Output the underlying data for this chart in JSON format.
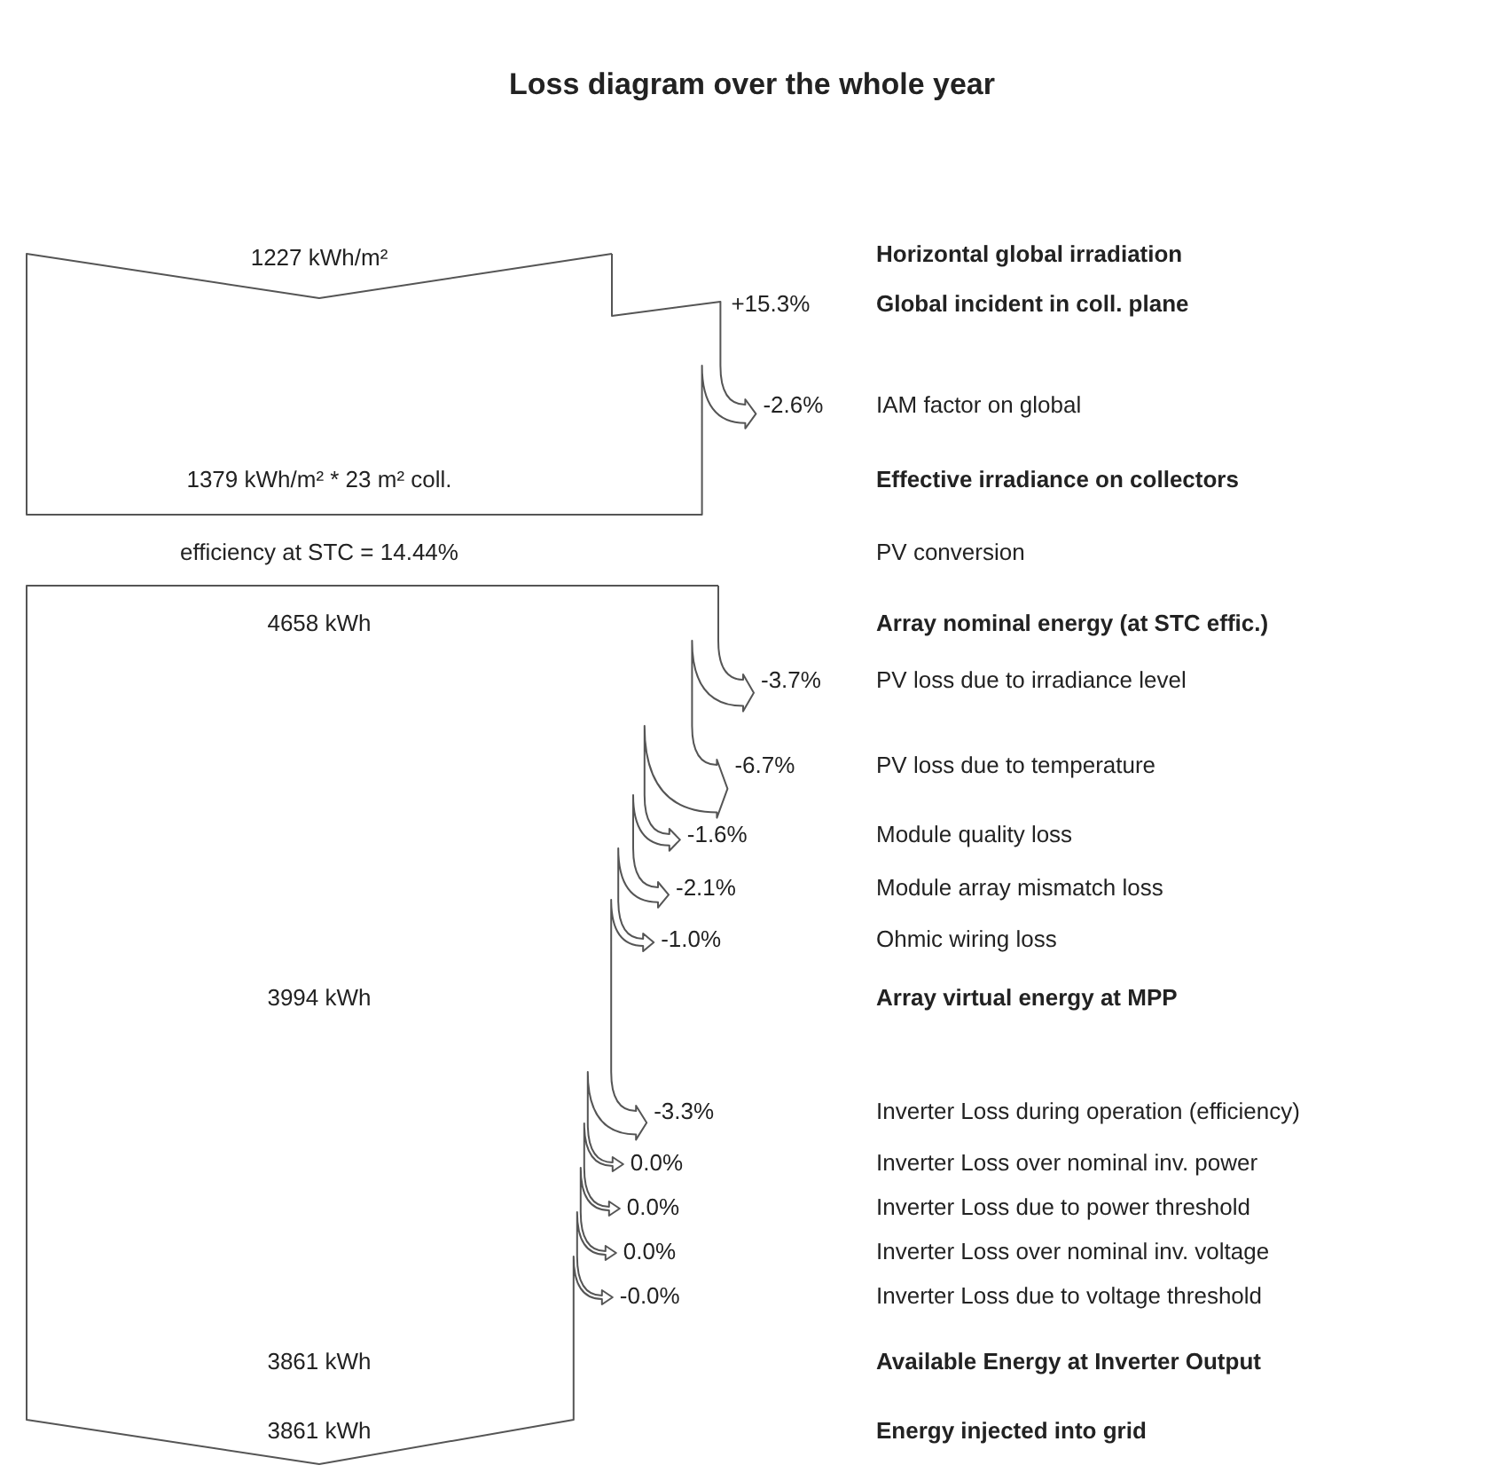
{
  "chart_data": {
    "type": "other",
    "title": "Loss diagram over the whole year",
    "categories": [
      "Horizontal global irradiation",
      "Global incident in coll. plane",
      "IAM factor on global",
      "Effective irradiance on collectors",
      "PV conversion",
      "Array nominal energy (at STC effic.)",
      "PV loss due to irradiance level",
      "PV loss due to temperature",
      "Module quality loss",
      "Module array mismatch loss",
      "Ohmic wiring loss",
      "Array virtual energy at MPP",
      "Inverter Loss during operation (efficiency)",
      "Inverter Loss over nominal inv. power",
      "Inverter Loss due to power threshold",
      "Inverter Loss over nominal inv. voltage",
      "Inverter Loss due to voltage threshold",
      "Available Energy at Inverter Output",
      "Energy injected into grid"
    ],
    "values": [
      null,
      15.3,
      -2.6,
      null,
      null,
      null,
      -3.7,
      -6.7,
      -1.6,
      -2.1,
      -1.0,
      null,
      -3.3,
      0.0,
      0.0,
      0.0,
      0,
      null,
      null
    ],
    "value_labels": [
      null,
      "+15.3%",
      "-2.6%",
      null,
      null,
      null,
      "-3.7%",
      "-6.7%",
      "-1.6%",
      "-2.1%",
      "-1.0%",
      null,
      "-3.3%",
      "0.0%",
      "0.0%",
      "0.0%",
      "-0.0%",
      null,
      null
    ],
    "annotations": [
      "1227 kWh/m²",
      "1379 kWh/m² * 23 m² coll.",
      "efficiency at STC = 14.44%",
      "4658 kWh",
      "3994 kWh",
      "3861 kWh",
      "3861 kWh"
    ]
  }
}
